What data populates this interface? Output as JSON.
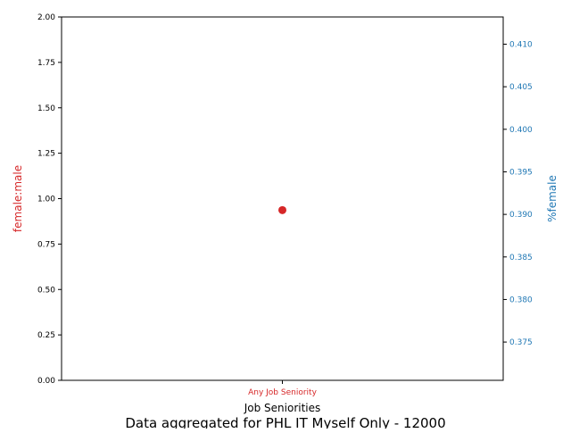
{
  "colors": {
    "left_axis": "#d62728",
    "right_axis": "#1f77b4",
    "axes_frame": "#000000",
    "background": "#ffffff"
  },
  "chart_data": {
    "type": "scatter",
    "categories": [
      "Any Job Seniority"
    ],
    "series": [
      {
        "axis": "left",
        "values": [
          0.937
        ],
        "color": "#d62728",
        "marker": "circle"
      }
    ],
    "xlabel": "Job Seniorities",
    "ylabel_left": "female:male",
    "ylabel_right": "%female",
    "ylim_left": [
      0,
      2
    ],
    "ylim_right": [
      0.3705,
      0.4132
    ],
    "yticks_left": [
      "0.00",
      "0.25",
      "0.50",
      "0.75",
      "1.00",
      "1.25",
      "1.50",
      "1.75",
      "2.00"
    ],
    "yticks_right": [
      "0.375",
      "0.380",
      "0.385",
      "0.390",
      "0.395",
      "0.400",
      "0.405",
      "0.410"
    ],
    "caption": "Data aggregated for PHL IT Myself Only - 12000",
    "grid": false,
    "legend": "none"
  }
}
